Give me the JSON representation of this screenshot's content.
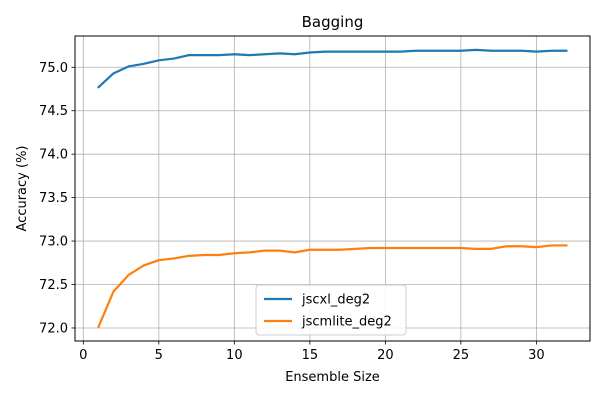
{
  "chart_data": {
    "type": "line",
    "title": "Bagging",
    "xlabel": "Ensemble Size",
    "ylabel": "Accuracy (%)",
    "xlim": [
      -0.55,
      33.55
    ],
    "ylim": [
      71.85,
      75.36
    ],
    "xticks": [
      0,
      5,
      10,
      15,
      20,
      25,
      30
    ],
    "yticks": [
      72.0,
      72.5,
      73.0,
      73.5,
      74.0,
      74.5,
      75.0
    ],
    "ytick_labels": [
      "72.0",
      "72.5",
      "73.0",
      "73.5",
      "74.0",
      "74.5",
      "75.0"
    ],
    "grid": true,
    "legend_position": "lower-center",
    "x": [
      1,
      2,
      3,
      4,
      5,
      6,
      7,
      8,
      9,
      10,
      11,
      12,
      13,
      14,
      15,
      16,
      17,
      18,
      19,
      20,
      21,
      22,
      23,
      24,
      25,
      26,
      27,
      28,
      29,
      30,
      31,
      32
    ],
    "series": [
      {
        "name": "jscxl_deg2",
        "color": "#1f77b4",
        "values": [
          74.77,
          74.93,
          75.01,
          75.04,
          75.08,
          75.1,
          75.14,
          75.14,
          75.14,
          75.15,
          75.14,
          75.15,
          75.16,
          75.15,
          75.17,
          75.18,
          75.18,
          75.18,
          75.18,
          75.18,
          75.18,
          75.19,
          75.19,
          75.19,
          75.19,
          75.2,
          75.19,
          75.19,
          75.19,
          75.18,
          75.19,
          75.19
        ]
      },
      {
        "name": "jscmlite_deg2",
        "color": "#ff7f0e",
        "values": [
          72.01,
          72.42,
          72.61,
          72.72,
          72.78,
          72.8,
          72.83,
          72.84,
          72.84,
          72.86,
          72.87,
          72.89,
          72.89,
          72.87,
          72.9,
          72.9,
          72.9,
          72.91,
          72.92,
          72.92,
          72.92,
          72.92,
          72.92,
          72.92,
          72.92,
          72.91,
          72.91,
          72.94,
          72.94,
          72.93,
          72.95,
          72.95
        ]
      }
    ]
  }
}
